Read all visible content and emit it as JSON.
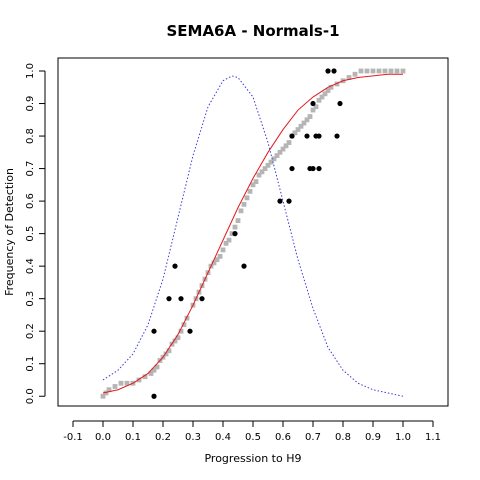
{
  "chart_data": {
    "type": "scatter",
    "title": "SEMA6A - Normals-1",
    "xlabel": "Progression to H9",
    "ylabel": "Frequency of Detection",
    "xlim": [
      -0.15,
      1.15
    ],
    "ylim": [
      -0.03,
      1.04
    ],
    "xticks": [
      "-0.1",
      "0.0",
      "0.1",
      "0.2",
      "0.3",
      "0.4",
      "0.5",
      "0.6",
      "0.7",
      "0.8",
      "0.9",
      "1.0",
      "1.1"
    ],
    "yticks": [
      "0.0",
      "0.1",
      "0.2",
      "0.3",
      "0.4",
      "0.5",
      "0.6",
      "0.7",
      "0.8",
      "0.9",
      "1.0"
    ],
    "grid": false,
    "legend": "none",
    "series": [
      {
        "kind": "points",
        "color": "#000000",
        "x": [
          0.17,
          0.17,
          0.22,
          0.24,
          0.26,
          0.29,
          0.33,
          0.44,
          0.47,
          0.59,
          0.62,
          0.63,
          0.63,
          0.68,
          0.69,
          0.7,
          0.7,
          0.71,
          0.72,
          0.72,
          0.75,
          0.77,
          0.78,
          0.79
        ],
        "y": [
          0.0,
          0.2,
          0.3,
          0.4,
          0.3,
          0.2,
          0.3,
          0.5,
          0.4,
          0.6,
          0.6,
          0.7,
          0.8,
          0.8,
          0.7,
          0.9,
          0.7,
          0.8,
          0.7,
          0.8,
          1.0,
          1.0,
          0.8,
          0.9
        ]
      },
      {
        "kind": "points",
        "color": "#b5b5b5",
        "x": [
          0.0,
          0.01,
          0.02,
          0.04,
          0.06,
          0.08,
          0.1,
          0.12,
          0.14,
          0.16,
          0.17,
          0.18,
          0.19,
          0.2,
          0.21,
          0.22,
          0.23,
          0.24,
          0.25,
          0.26,
          0.27,
          0.28,
          0.3,
          0.31,
          0.32,
          0.33,
          0.34,
          0.35,
          0.36,
          0.37,
          0.38,
          0.39,
          0.4,
          0.41,
          0.42,
          0.43,
          0.44,
          0.45,
          0.46,
          0.47,
          0.48,
          0.49,
          0.5,
          0.51,
          0.52,
          0.53,
          0.54,
          0.55,
          0.56,
          0.57,
          0.58,
          0.59,
          0.6,
          0.61,
          0.62,
          0.63,
          0.64,
          0.65,
          0.66,
          0.67,
          0.68,
          0.69,
          0.7,
          0.71,
          0.72,
          0.73,
          0.74,
          0.75,
          0.76,
          0.78,
          0.8,
          0.82,
          0.84,
          0.86,
          0.88,
          0.9,
          0.92,
          0.94,
          0.96,
          0.98,
          1.0
        ],
        "y": [
          0.0,
          0.01,
          0.02,
          0.03,
          0.04,
          0.04,
          0.04,
          0.05,
          0.06,
          0.07,
          0.08,
          0.09,
          0.11,
          0.12,
          0.13,
          0.14,
          0.16,
          0.17,
          0.18,
          0.2,
          0.22,
          0.24,
          0.28,
          0.3,
          0.32,
          0.34,
          0.36,
          0.38,
          0.4,
          0.41,
          0.42,
          0.43,
          0.45,
          0.47,
          0.48,
          0.5,
          0.52,
          0.54,
          0.57,
          0.59,
          0.61,
          0.63,
          0.65,
          0.66,
          0.68,
          0.69,
          0.7,
          0.71,
          0.72,
          0.73,
          0.74,
          0.75,
          0.76,
          0.77,
          0.78,
          0.8,
          0.81,
          0.82,
          0.83,
          0.84,
          0.85,
          0.86,
          0.88,
          0.89,
          0.91,
          0.92,
          0.93,
          0.94,
          0.95,
          0.96,
          0.97,
          0.98,
          0.99,
          1.0,
          1.0,
          1.0,
          1.0,
          1.0,
          1.0,
          1.0,
          1.0
        ]
      },
      {
        "kind": "line",
        "color": "#e31a1c",
        "x": [
          0.0,
          0.05,
          0.1,
          0.15,
          0.2,
          0.25,
          0.3,
          0.35,
          0.4,
          0.45,
          0.5,
          0.55,
          0.6,
          0.65,
          0.7,
          0.75,
          0.8,
          0.85,
          0.9,
          0.95,
          1.0
        ],
        "y": [
          0.01,
          0.02,
          0.04,
          0.07,
          0.12,
          0.19,
          0.28,
          0.38,
          0.48,
          0.58,
          0.67,
          0.75,
          0.82,
          0.88,
          0.92,
          0.95,
          0.97,
          0.98,
          0.985,
          0.99,
          0.99
        ]
      },
      {
        "kind": "dotted-line",
        "color": "#3b3bd9",
        "x": [
          0.0,
          0.05,
          0.1,
          0.15,
          0.2,
          0.25,
          0.3,
          0.35,
          0.4,
          0.43,
          0.45,
          0.5,
          0.55,
          0.6,
          0.65,
          0.7,
          0.75,
          0.8,
          0.85,
          0.9,
          0.95,
          1.0
        ],
        "y": [
          0.05,
          0.08,
          0.13,
          0.22,
          0.36,
          0.55,
          0.74,
          0.89,
          0.97,
          0.985,
          0.98,
          0.92,
          0.78,
          0.6,
          0.42,
          0.27,
          0.15,
          0.08,
          0.04,
          0.02,
          0.01,
          0.0
        ]
      }
    ]
  }
}
